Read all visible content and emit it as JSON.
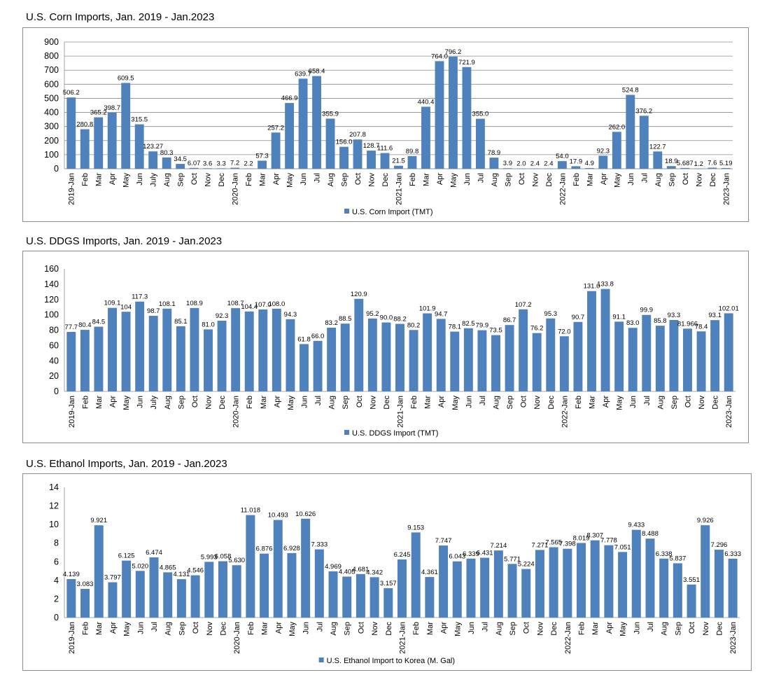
{
  "chart_data": [
    {
      "type": "bar",
      "title": "U.S. Corn Imports, Jan. 2019 - Jan.2023",
      "series": [
        {
          "name": "U.S. Corn Import (TMT)",
          "color": "#4f81bd"
        }
      ],
      "categories": [
        "2019-Jan",
        "Feb",
        "Mar",
        "Apr",
        "May",
        "Jun",
        "July",
        "Aug",
        "Sep",
        "Oct",
        "Nov",
        "Dec",
        "2020-Jan",
        "Feb",
        "Mar",
        "Apr",
        "May",
        "Jun",
        "Jul",
        "Aug",
        "Sep",
        "Oct",
        "Nov",
        "Dec",
        "2021-Jan",
        "Feb",
        "Mar",
        "Apr",
        "May",
        "Jun",
        "Jul",
        "Aug",
        "Sep",
        "Oct",
        "Nov",
        "Dec",
        "2022-Jan",
        "Feb",
        "Mar",
        "Apr",
        "May",
        "Jun",
        "Jul",
        "Aug",
        "Sep",
        "Oct",
        "Nov",
        "Dec",
        "2023-Jan"
      ],
      "values": [
        506.2,
        280.8,
        365.2,
        398.7,
        609.5,
        315.5,
        123.27,
        80.3,
        34.5,
        6.07,
        3.6,
        3.3,
        7.2,
        2.2,
        57.3,
        257.2,
        466.9,
        639.7,
        658.4,
        355.9,
        156.0,
        207.8,
        128.7,
        111.6,
        21.5,
        89.8,
        440.4,
        764.0,
        796.2,
        721.9,
        355.0,
        78.9,
        3.9,
        2.0,
        2.4,
        2.4,
        54.0,
        17.9,
        4.9,
        92.3,
        262.0,
        524.8,
        376.2,
        122.7,
        18.9,
        5.687,
        1.2,
        7.6,
        5.19
      ],
      "labels": [
        "506.2",
        "280.8",
        "365.2",
        "398.7",
        "609.5",
        "315.5",
        "123.27",
        "80.3",
        "34.5",
        "6.07",
        "3.6",
        "3.3",
        "7.2",
        "2.2",
        "57.3",
        "257.2",
        "466.9",
        "639.7",
        "658.4",
        "355.9",
        "156.0",
        "207.8",
        "128.7",
        "111.6",
        "21.5",
        "89.8",
        "440.4",
        "764.0",
        "796.2",
        "721.9",
        "355.0",
        "78.9",
        "3.9",
        "2.0",
        "2.4",
        "2.4",
        "54.0",
        "17.9",
        "4.9",
        "92.3",
        "262.0",
        "524.8",
        "376.2",
        "122.7",
        "18.9",
        "5.687",
        "1.2",
        "7.6",
        "5.19"
      ],
      "ylim": [
        0,
        900
      ],
      "yticks": [
        0,
        100,
        200,
        300,
        400,
        500,
        600,
        700,
        800,
        900
      ],
      "grid": true,
      "legend_position": "bottom"
    },
    {
      "type": "bar",
      "title": "U.S. DDGS Imports, Jan. 2019 - Jan.2023",
      "series": [
        {
          "name": "U.S. DDGS Import (TMT)",
          "color": "#4f81bd"
        }
      ],
      "categories": [
        "2019-Jan",
        "Feb",
        "Mar",
        "Apr",
        "May",
        "Jun",
        "July",
        "Aug",
        "Sep",
        "Oct",
        "Nov",
        "Dec",
        "2020-Jan",
        "Feb",
        "Mar",
        "Apr",
        "May",
        "Jun",
        "Jul",
        "Aug",
        "Sep",
        "Oct",
        "Nov",
        "Dec",
        "2021-Jan",
        "Feb",
        "Mar",
        "Apr",
        "May",
        "Jun",
        "Jul",
        "Aug",
        "Sep",
        "Oct",
        "Nov",
        "Dec",
        "2022-Jan",
        "Feb",
        "Mar",
        "Apr",
        "May",
        "Jun",
        "Jul",
        "Aug",
        "Sep",
        "Oct",
        "Nov",
        "Dec",
        "2023-Jan"
      ],
      "values": [
        77.7,
        80.4,
        84.5,
        109.1,
        104,
        117.3,
        98.7,
        108.1,
        85.1,
        108.9,
        81.0,
        92.3,
        108.7,
        104.4,
        107.0,
        108.0,
        94.3,
        61.8,
        66.0,
        83.2,
        88.5,
        120.9,
        95.2,
        90.0,
        88.2,
        80.2,
        101.9,
        94.7,
        78.1,
        82.5,
        79.9,
        73.5,
        86.7,
        107.2,
        76.2,
        95.3,
        72.0,
        90.7,
        131.0,
        133.8,
        91.1,
        83.0,
        99.9,
        85.8,
        93.3,
        81.966,
        78.4,
        93.1,
        102.01
      ],
      "labels": [
        "77.7",
        "80.4",
        "84.5",
        "109.1",
        "104",
        "117.3",
        "98.7",
        "108.1",
        "85.1",
        "108.9",
        "81.0",
        "92.3",
        "108.7",
        "104.4",
        "107.0",
        "108.0",
        "94.3",
        "61.8",
        "66.0",
        "83.2",
        "88.5",
        "120.9",
        "95.2",
        "90.0",
        "88.2",
        "80.2",
        "101.9",
        "94.7",
        "78.1",
        "82.5",
        "79.9",
        "73.5",
        "86.7",
        "107.2",
        "76.2",
        "95.3",
        "72.0",
        "90.7",
        "131.0",
        "133.8",
        "91.1",
        "83.0",
        "99.9",
        "85.8",
        "93.3",
        "81.966",
        "78.4",
        "93.1",
        "102.01"
      ],
      "ylim": [
        0,
        160
      ],
      "yticks": [
        0,
        20,
        40,
        60,
        80,
        100,
        120,
        140,
        160
      ],
      "grid": false,
      "legend_position": "bottom"
    },
    {
      "type": "bar",
      "title": "U.S. Ethanol Imports, Jan. 2019 - Jan.2023",
      "series": [
        {
          "name": "U.S. Ethanol Import to Korea (M. Gal)",
          "color": "#4f81bd"
        }
      ],
      "categories": [
        "2019-Jan",
        "Feb",
        "Mar",
        "Apr",
        "May",
        "Jun",
        "Jul",
        "Aug",
        "Sep",
        "Oct",
        "Nov",
        "Dec",
        "2020-Jan",
        "Feb",
        "Mar",
        "Apr",
        "May",
        "Jun",
        "Jul",
        "Aug",
        "Sep",
        "Oct",
        "Nov",
        "Dec",
        "2021-Jan",
        "Feb",
        "Mar",
        "Apr",
        "May",
        "Jun",
        "Jul",
        "Aug",
        "Sep",
        "Oct",
        "Nov",
        "Dec",
        "2022-Jan",
        "Feb",
        "Mar",
        "Apr",
        "May",
        "Jun",
        "Jul",
        "Aug",
        "Sep",
        "Oct",
        "Nov",
        "Dec",
        "2023-Jan"
      ],
      "values": [
        4.139,
        3.083,
        9.921,
        3.797,
        6.125,
        5.02,
        6.474,
        4.865,
        4.131,
        4.546,
        5.993,
        6.058,
        5.63,
        11.018,
        6.876,
        10.493,
        6.928,
        10.626,
        7.333,
        4.969,
        4.405,
        4.681,
        4.342,
        3.157,
        6.245,
        9.153,
        4.361,
        7.747,
        6.043,
        6.339,
        6.431,
        7.214,
        5.771,
        5.224,
        7.271,
        7.565,
        7.398,
        8.019,
        8.307,
        7.778,
        7.051,
        9.433,
        8.488,
        6.338,
        5.837,
        3.551,
        9.926,
        7.296,
        6.333
      ],
      "labels": [
        "4.139",
        "3.083",
        "9.921",
        "3.797",
        "6.125",
        "5.020",
        "6.474",
        "4.865",
        "4.131",
        "4.546",
        "5.993",
        "6.058",
        "5.630",
        "11.018",
        "6.876",
        "10.493",
        "6.928",
        "10.626",
        "7.333",
        "4.969",
        "4.405",
        "4.681",
        "4.342",
        "3.157",
        "6.245",
        "9.153",
        "4.361",
        "7.747",
        "6.043",
        "6.339",
        "6.431",
        "7.214",
        "5.771",
        "5.224",
        "7.271",
        "7.565",
        "7.398",
        "8.019",
        "8.307",
        "7.778",
        "7.051",
        "9.433",
        "8.488",
        "6.338",
        "5.837",
        "3.551",
        "9.926",
        "7.296",
        "6.333"
      ],
      "ylim": [
        0,
        14
      ],
      "yticks": [
        0,
        2,
        4,
        6,
        8,
        10,
        12,
        14
      ],
      "grid": false,
      "legend_position": "bottom"
    }
  ]
}
